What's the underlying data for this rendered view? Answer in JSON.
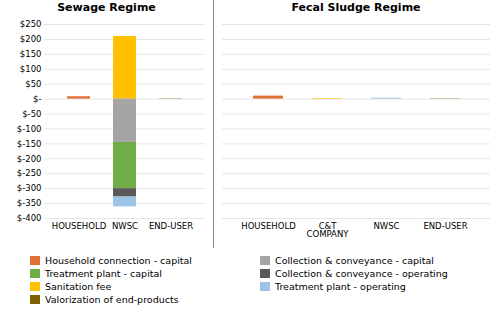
{
  "chart_data": [
    {
      "type": "bar",
      "stacked": true,
      "title": "Sewage Regime",
      "categories": [
        "HOUSEHOLD",
        "NWSC",
        "END-USER"
      ],
      "series": [
        {
          "name": "Household connection - capital",
          "color": "#E07035",
          "values": [
            8,
            null,
            null
          ]
        },
        {
          "name": "Sanitation fee",
          "color": "#FFC000",
          "values": [
            null,
            210,
            null
          ]
        },
        {
          "name": "Collection & conveyance - capital",
          "color": "#A5A5A5",
          "values": [
            null,
            -145,
            null
          ]
        },
        {
          "name": "Treatment plant - capital",
          "color": "#70AD47",
          "values": [
            null,
            -155,
            null
          ]
        },
        {
          "name": "Collection & conveyance - operating",
          "color": "#595959",
          "values": [
            null,
            -28,
            null
          ]
        },
        {
          "name": "Treatment plant - operating",
          "color": "#9DC3E6",
          "values": [
            null,
            -33,
            null
          ]
        },
        {
          "name": "Valorization of end-products",
          "color": "#7F6000",
          "values": [
            null,
            null,
            1
          ]
        }
      ],
      "ylim": [
        -400,
        250
      ],
      "yticks": [
        {
          "value": 250,
          "label": "$250"
        },
        {
          "value": 200,
          "label": "$200"
        },
        {
          "value": 150,
          "label": "$150"
        },
        {
          "value": 100,
          "label": "$100"
        },
        {
          "value": 50,
          "label": "$50"
        },
        {
          "value": 0,
          "label": "$-"
        },
        {
          "value": -50,
          "label": "$-50"
        },
        {
          "value": -100,
          "label": "$-100"
        },
        {
          "value": -150,
          "label": "$-150"
        },
        {
          "value": -200,
          "label": "$-200"
        },
        {
          "value": -250,
          "label": "$-250"
        },
        {
          "value": -300,
          "label": "$-300"
        },
        {
          "value": -350,
          "label": "$-350"
        },
        {
          "value": -400,
          "label": "$-400"
        }
      ],
      "grid": true
    },
    {
      "type": "bar",
      "stacked": true,
      "title": "Fecal Sludge Regime",
      "categories": [
        "HOUSEHOLD",
        "C&T\nCOMPANY",
        "NWSC",
        "END-USER"
      ],
      "series": [
        {
          "name": "Household connection - capital",
          "color": "#E07035",
          "values": [
            10,
            null,
            null,
            null
          ]
        },
        {
          "name": "Treatment plant - capital",
          "color": "#70AD47",
          "values": [
            null,
            null,
            null,
            null
          ]
        },
        {
          "name": "Sanitation fee",
          "color": "#FFC000",
          "values": [
            null,
            2,
            null,
            null
          ]
        },
        {
          "name": "Valorization of end-products",
          "color": "#7F6000",
          "values": [
            null,
            null,
            null,
            1
          ]
        },
        {
          "name": "Collection & conveyance - capital",
          "color": "#A5A5A5",
          "values": [
            null,
            null,
            null,
            null
          ]
        },
        {
          "name": "Collection & conveyance - operating",
          "color": "#595959",
          "values": [
            null,
            null,
            null,
            null
          ]
        },
        {
          "name": "Treatment plant - operating",
          "color": "#9DC3E6",
          "values": [
            null,
            null,
            3,
            null
          ]
        }
      ],
      "ylim": [
        -400,
        250
      ],
      "yticks": [
        250,
        200,
        150,
        100,
        50,
        0,
        -50,
        -100,
        -150,
        -200,
        -250,
        -300,
        -350,
        -400
      ],
      "grid": true,
      "tick_labels": "x",
      "legend": "lower left"
    }
  ]
}
